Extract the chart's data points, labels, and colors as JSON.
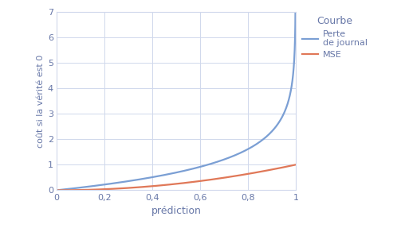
{
  "title": "",
  "xlabel": "prédiction",
  "ylabel": "coût si la vérité est 0",
  "xlim": [
    0,
    1.0
  ],
  "ylim": [
    0,
    7
  ],
  "yticks": [
    0,
    1,
    2,
    3,
    4,
    5,
    6,
    7
  ],
  "xticks": [
    0,
    0.2,
    0.4,
    0.6,
    0.8,
    1.0
  ],
  "log_loss_color": "#7b9fd4",
  "mse_color": "#e07858",
  "legend_title": "Courbe",
  "legend_label_log": "Perte\nde journal",
  "legend_label_mse": "MSE",
  "background_color": "#ffffff",
  "grid_color": "#d0d8ec",
  "axis_label_color": "#6878a8",
  "tick_color": "#6878a8",
  "line_width": 1.6
}
